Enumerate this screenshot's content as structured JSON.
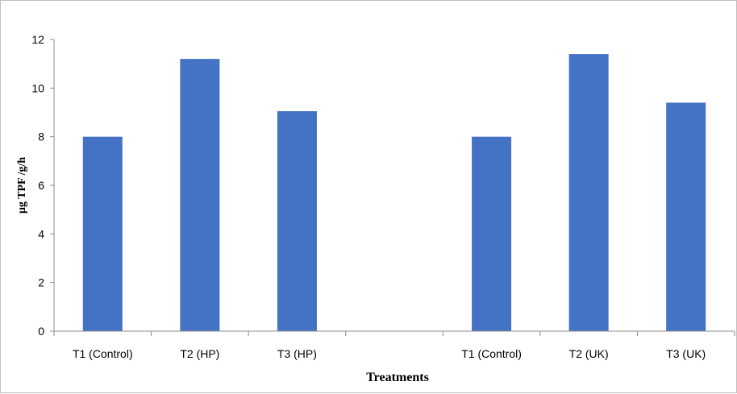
{
  "chart_data": {
    "type": "bar",
    "title": "",
    "xlabel": "Treatments",
    "ylabel": "µg TPF /g/h",
    "ylim": [
      0,
      12
    ],
    "yticks": [
      0,
      2,
      4,
      6,
      8,
      10,
      12
    ],
    "categories": [
      "T1 (Control)",
      "T2 (HP)",
      "T3 (HP)",
      "",
      "T1 (Control)",
      "T2 (UK)",
      "T3 (UK)"
    ],
    "series": [
      {
        "values": [
          8.0,
          11.2,
          9.05,
          null,
          8.0,
          11.4,
          9.4
        ]
      }
    ],
    "bar_color": "#4472c4",
    "grid": false,
    "legend": "none"
  }
}
